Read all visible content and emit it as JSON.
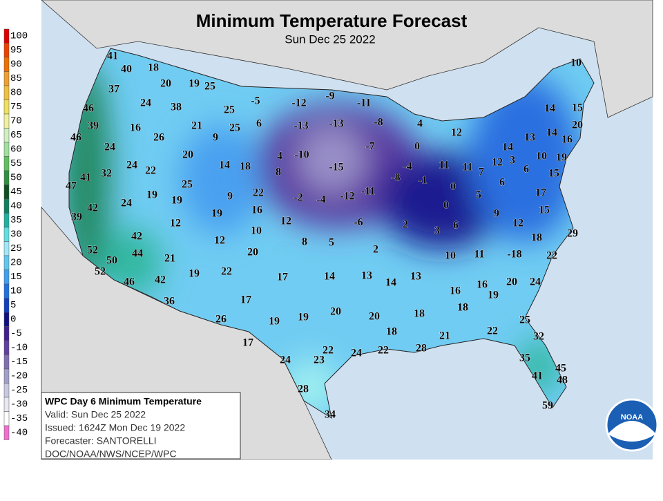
{
  "header": {
    "title": "Minimum Temperature Forecast",
    "subtitle": "Sun Dec 25 2022"
  },
  "legend": {
    "labels": [
      100,
      95,
      90,
      85,
      80,
      75,
      70,
      65,
      60,
      55,
      50,
      45,
      40,
      35,
      30,
      25,
      20,
      15,
      10,
      5,
      0,
      -5,
      -10,
      -15,
      -20,
      -25,
      -30,
      -35,
      -40
    ],
    "colors": [
      "#e00000",
      "#f04000",
      "#f07000",
      "#f0a030",
      "#f0c040",
      "#f0e060",
      "#f0f0a0",
      "#d0f0c0",
      "#a0e0a0",
      "#60c060",
      "#309040",
      "#105020",
      "#108060",
      "#20b0a0",
      "#60e0e0",
      "#a0e8f8",
      "#60c8f0",
      "#40a0f0",
      "#2070e0",
      "#1040c0",
      "#101080",
      "#402090",
      "#6040a0",
      "#8070b0",
      "#a0a0c8",
      "#c8c8e0",
      "#e8e8f0",
      "#ffffff",
      "#f070d0"
    ]
  },
  "map_labels": [
    41,
    40,
    18,
    20,
    19,
    25,
    37,
    24,
    38,
    -5,
    -12,
    -9,
    -11,
    46,
    25,
    16,
    21,
    6,
    -13,
    -13,
    -8,
    4,
    12,
    39,
    26,
    9,
    25,
    10,
    14,
    15,
    20,
    14,
    13,
    16,
    46,
    24,
    20,
    4,
    -10,
    -7,
    0,
    14,
    10,
    19,
    12,
    3,
    14,
    18,
    8,
    -15,
    -4,
    11,
    11,
    7,
    6,
    15,
    24,
    22,
    32,
    47,
    41,
    25,
    -8,
    -1,
    6,
    17,
    0,
    5,
    19,
    19,
    24,
    9,
    22,
    -2,
    -4,
    -12,
    -11,
    0,
    15,
    42,
    39,
    12,
    19,
    16,
    12,
    -6,
    2,
    3,
    6,
    9,
    12,
    29,
    10,
    42,
    12,
    8,
    5,
    2,
    18,
    52,
    50,
    44,
    21,
    20,
    10,
    11,
    -18,
    22,
    52,
    19,
    22,
    17,
    14,
    13,
    14,
    13,
    46,
    42,
    16,
    16,
    20,
    24,
    19,
    36,
    17,
    18,
    20,
    20,
    18,
    19,
    19,
    26,
    25,
    22,
    18,
    21,
    32,
    17,
    28,
    22,
    24,
    22,
    24,
    23,
    35,
    45,
    41,
    48,
    28,
    34,
    59
  ],
  "info_box": {
    "lines": [
      "WPC Day 6 Minimum Temperature",
      "Valid: Sun Dec 25 2022",
      "Issued: 1624Z Mon Dec 19 2022",
      "Forecaster: SANTORELLI",
      "DOC/NOAA/NWS/NCEP/WPC"
    ]
  },
  "logo": "NOAA"
}
